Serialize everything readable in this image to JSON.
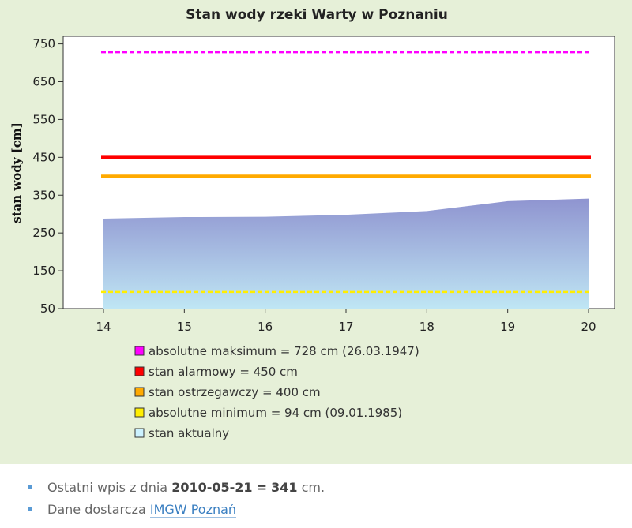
{
  "chart_data": {
    "type": "area",
    "title": "Stan wody rzeki Warty w Poznaniu",
    "ylabel": "stan wody [cm]",
    "xlabel": "",
    "x": [
      14,
      15,
      16,
      17,
      18,
      19,
      20
    ],
    "x_tick_labels": [
      "14",
      "15",
      "16",
      "17",
      "18",
      "19",
      "20"
    ],
    "ylim": [
      50,
      770
    ],
    "y_ticks": [
      50,
      150,
      250,
      350,
      450,
      550,
      650,
      750
    ],
    "y_tick_labels": [
      "50",
      "150",
      "250",
      "350",
      "450",
      "550",
      "650",
      "750"
    ],
    "grid": false,
    "area_series": {
      "name": "stan aktualny",
      "values": [
        288,
        292,
        293,
        298,
        308,
        334,
        341
      ],
      "color_top": "#8f94d0",
      "color_bottom": "#bfe6f4"
    },
    "reference_lines": [
      {
        "label": "absolutne maksimum = 728 cm (26.03.1947)",
        "value": 728,
        "color": "#ff00ff",
        "style": "dashed"
      },
      {
        "label": "stan alarmowy = 450 cm",
        "value": 450,
        "color": "#ff0000",
        "style": "solid"
      },
      {
        "label": "stan ostrzegawczy = 400 cm",
        "value": 400,
        "color": "#ffaa00",
        "style": "solid"
      },
      {
        "label": "absolutne minimum = 94 cm (09.01.1985)",
        "value": 94,
        "color": "#ffee00",
        "style": "dashed"
      }
    ],
    "legend": [
      {
        "label": "absolutne maksimum = 728 cm (26.03.1947)",
        "color": "#ff00ff"
      },
      {
        "label": "stan alarmowy = 450 cm",
        "color": "#ff0000"
      },
      {
        "label": "stan ostrzegawczy = 400 cm",
        "color": "#ffaa00"
      },
      {
        "label": "absolutne minimum = 94 cm (09.01.1985)",
        "color": "#ffee00"
      },
      {
        "label": "stan aktualny",
        "color": "#ccf2ff"
      }
    ],
    "legend_placement": "bottom"
  },
  "footer": {
    "last_entry_prefix": "Ostatni wpis z dnia",
    "last_entry_date": "2010-05-21",
    "last_entry_equals": "=",
    "last_entry_value": "341",
    "last_entry_unit": "cm.",
    "source_prefix": "Dane dostarcza",
    "source_link": "IMGW Poznań"
  }
}
